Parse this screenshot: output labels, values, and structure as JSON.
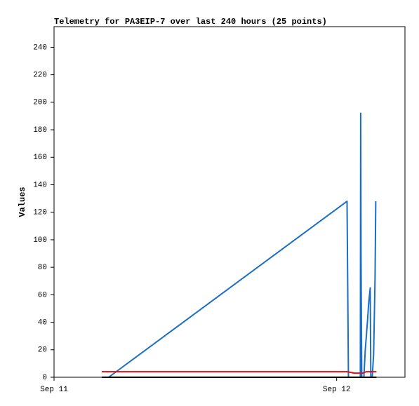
{
  "chart_data": {
    "type": "line",
    "title": "Telemetry for PA3EIP-7 over last 240 hours (25 points)",
    "y_label": "Values",
    "xlim": [
      0,
      29.8
    ],
    "xticks": [
      {
        "value": 0,
        "label": "Sep 11"
      },
      {
        "value": 24,
        "label": "Sep 12"
      }
    ],
    "ylim": [
      0,
      255
    ],
    "yticks": [
      0,
      20,
      40,
      60,
      80,
      100,
      120,
      140,
      160,
      180,
      200,
      220,
      240
    ],
    "grid": false,
    "series": [
      {
        "color": "#1a6fc4",
        "x": [
          4.64,
          24.88,
          24.94,
          25.0,
          26.01,
          26.04,
          26.07,
          26.13,
          26.31,
          26.43,
          26.61,
          26.73,
          26.85,
          26.9,
          27.02,
          27.14,
          27.26,
          27.32
        ],
        "values": [
          0,
          128,
          65,
          0,
          0,
          192,
          88,
          0,
          0,
          20,
          40,
          55,
          65,
          0,
          0,
          17,
          72,
          128
        ]
      },
      {
        "color": "#e01010",
        "x": [
          4.05,
          24.9,
          25.5,
          26.2,
          26.5,
          27.38
        ],
        "values": [
          4,
          4,
          3,
          3,
          4,
          4
        ]
      },
      {
        "color": "#000000",
        "x": [
          4.05,
          27.38
        ],
        "values": [
          0,
          0
        ]
      }
    ]
  }
}
